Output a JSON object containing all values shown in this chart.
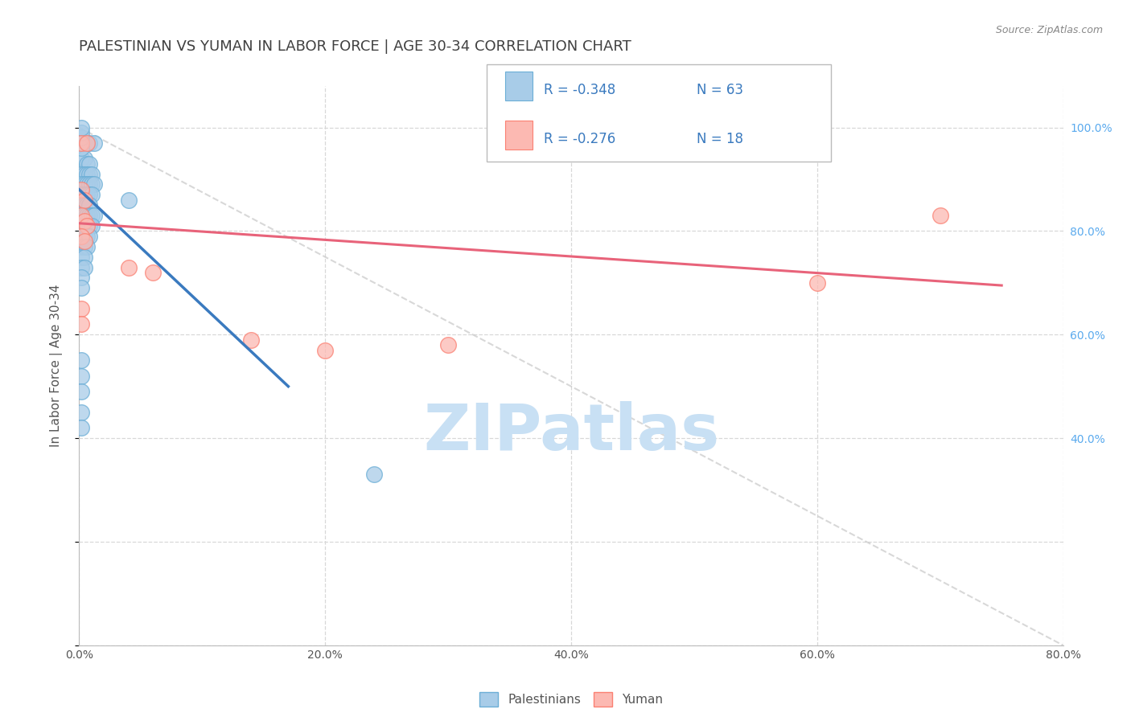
{
  "title": "PALESTINIAN VS YUMAN IN LABOR FORCE | AGE 30-34 CORRELATION CHART",
  "source": "Source: ZipAtlas.com",
  "ylabel": "In Labor Force | Age 30-34",
  "xlim": [
    0.0,
    0.8
  ],
  "ylim": [
    0.0,
    1.08
  ],
  "legend_r_blue": "-0.348",
  "legend_n_blue": "63",
  "legend_r_pink": "-0.276",
  "legend_n_pink": "18",
  "legend_label_blue": "Palestinians",
  "legend_label_pink": "Yuman",
  "blue_color": "#a8cce8",
  "blue_edge_color": "#6baed6",
  "pink_color": "#fcb9b2",
  "pink_edge_color": "#fb8072",
  "trendline_blue_color": "#3a7abf",
  "trendline_pink_color": "#e8637a",
  "diagonal_color": "#c8c8c8",
  "background_color": "#ffffff",
  "grid_color": "#d8d8d8",
  "title_color": "#404040",
  "axis_label_color": "#555555",
  "right_tick_color": "#5aaaee",
  "source_color": "#888888",
  "legend_text_color": "#3a7abf",
  "blue_scatter": [
    [
      0.002,
      0.97
    ],
    [
      0.006,
      0.97
    ],
    [
      0.008,
      0.97
    ],
    [
      0.012,
      0.97
    ],
    [
      0.002,
      0.94
    ],
    [
      0.004,
      0.94
    ],
    [
      0.006,
      0.93
    ],
    [
      0.008,
      0.93
    ],
    [
      0.002,
      0.91
    ],
    [
      0.004,
      0.91
    ],
    [
      0.006,
      0.91
    ],
    [
      0.008,
      0.91
    ],
    [
      0.01,
      0.91
    ],
    [
      0.002,
      0.89
    ],
    [
      0.004,
      0.89
    ],
    [
      0.006,
      0.89
    ],
    [
      0.008,
      0.89
    ],
    [
      0.01,
      0.89
    ],
    [
      0.012,
      0.89
    ],
    [
      0.002,
      0.87
    ],
    [
      0.004,
      0.87
    ],
    [
      0.006,
      0.87
    ],
    [
      0.008,
      0.87
    ],
    [
      0.01,
      0.87
    ],
    [
      0.002,
      0.85
    ],
    [
      0.004,
      0.85
    ],
    [
      0.006,
      0.85
    ],
    [
      0.008,
      0.85
    ],
    [
      0.002,
      0.83
    ],
    [
      0.004,
      0.83
    ],
    [
      0.006,
      0.83
    ],
    [
      0.008,
      0.83
    ],
    [
      0.01,
      0.83
    ],
    [
      0.012,
      0.83
    ],
    [
      0.002,
      0.81
    ],
    [
      0.004,
      0.81
    ],
    [
      0.006,
      0.81
    ],
    [
      0.008,
      0.81
    ],
    [
      0.01,
      0.81
    ],
    [
      0.002,
      0.79
    ],
    [
      0.004,
      0.79
    ],
    [
      0.006,
      0.79
    ],
    [
      0.008,
      0.79
    ],
    [
      0.002,
      0.77
    ],
    [
      0.004,
      0.77
    ],
    [
      0.006,
      0.77
    ],
    [
      0.002,
      0.75
    ],
    [
      0.004,
      0.75
    ],
    [
      0.002,
      0.73
    ],
    [
      0.004,
      0.73
    ],
    [
      0.04,
      0.86
    ],
    [
      0.002,
      0.71
    ],
    [
      0.002,
      0.69
    ],
    [
      0.002,
      0.55
    ],
    [
      0.002,
      0.52
    ],
    [
      0.002,
      0.49
    ],
    [
      0.002,
      0.45
    ],
    [
      0.002,
      0.42
    ],
    [
      0.24,
      0.33
    ],
    [
      0.002,
      0.96
    ],
    [
      0.002,
      0.98
    ],
    [
      0.002,
      0.99
    ],
    [
      0.002,
      1.0
    ]
  ],
  "pink_scatter": [
    [
      0.002,
      0.97
    ],
    [
      0.006,
      0.97
    ],
    [
      0.002,
      0.88
    ],
    [
      0.004,
      0.86
    ],
    [
      0.002,
      0.83
    ],
    [
      0.004,
      0.82
    ],
    [
      0.006,
      0.81
    ],
    [
      0.002,
      0.79
    ],
    [
      0.004,
      0.78
    ],
    [
      0.04,
      0.73
    ],
    [
      0.06,
      0.72
    ],
    [
      0.002,
      0.65
    ],
    [
      0.002,
      0.62
    ],
    [
      0.14,
      0.59
    ],
    [
      0.2,
      0.57
    ],
    [
      0.6,
      0.7
    ],
    [
      0.7,
      0.83
    ],
    [
      0.3,
      0.58
    ]
  ],
  "blue_trendline_x": [
    0.0,
    0.17
  ],
  "blue_trendline_y": [
    0.88,
    0.5
  ],
  "pink_trendline_x": [
    0.0,
    0.75
  ],
  "pink_trendline_y": [
    0.815,
    0.695
  ],
  "diagonal_line_x": [
    0.0,
    0.8
  ],
  "diagonal_line_y": [
    1.0,
    0.0
  ],
  "watermark": "ZIPatlas",
  "watermark_color": "#c8e0f4",
  "watermark_fontsize": 58
}
